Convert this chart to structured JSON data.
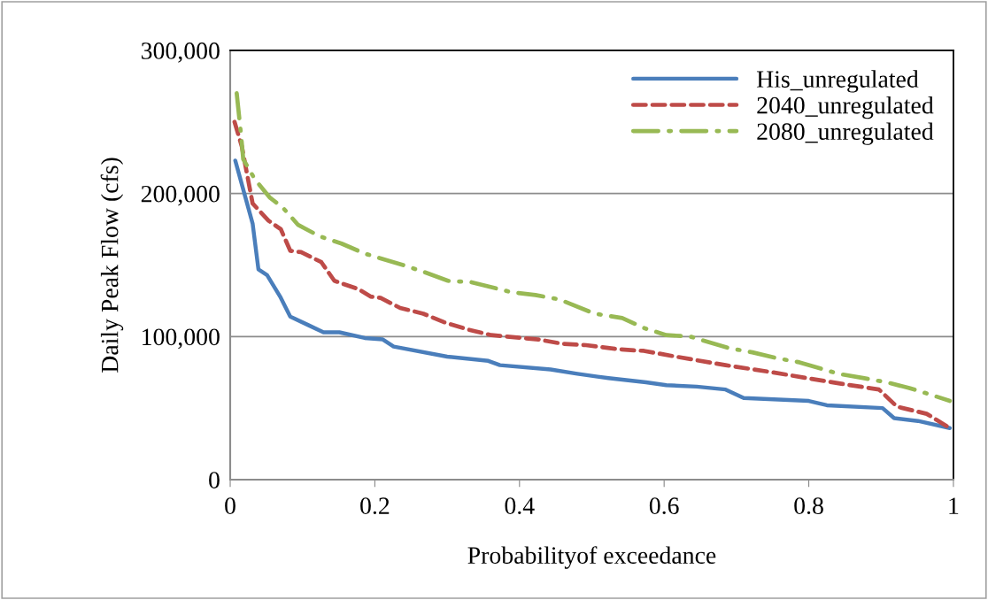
{
  "chart_data": {
    "type": "line",
    "xlabel": "Probabilityof exceedance",
    "ylabel": "Daily Peak Flow (cfs)",
    "xlim": [
      0,
      1
    ],
    "xticks": [
      0,
      0.2,
      0.4,
      0.6,
      0.8,
      1
    ],
    "ylim": [
      0,
      300000
    ],
    "yticks": [
      0,
      {
        "value": 100000,
        "label": "100,000"
      },
      {
        "value": 200000,
        "label": "200,000"
      },
      {
        "value": 300000,
        "label": "300,000"
      }
    ],
    "grid": "y",
    "legend": "top right",
    "series": [
      {
        "name": "His_unregulated",
        "color": "#4a7ebb",
        "line_style": "solid",
        "x": [
          0.007,
          0.031,
          0.039,
          0.051,
          0.069,
          0.083,
          0.108,
          0.129,
          0.151,
          0.186,
          0.211,
          0.226,
          0.3,
          0.357,
          0.373,
          0.443,
          0.48,
          0.508,
          0.523,
          0.575,
          0.603,
          0.645,
          0.685,
          0.71,
          0.8,
          0.825,
          0.902,
          0.918,
          0.951,
          0.995
        ],
        "values": [
          223000,
          179000,
          147000,
          143000,
          128000,
          114000,
          108000,
          103000,
          103000,
          99000,
          98000,
          93000,
          86000,
          83000,
          80000,
          77000,
          74000,
          72000,
          71000,
          68000,
          66000,
          65000,
          63000,
          57000,
          55000,
          52000,
          50000,
          43000,
          41000,
          36000
        ]
      },
      {
        "name": "2040_unregulated",
        "color": "#be4b48",
        "line_style": "dashed",
        "x": [
          0.006,
          0.016,
          0.031,
          0.053,
          0.07,
          0.083,
          0.098,
          0.126,
          0.144,
          0.178,
          0.194,
          0.208,
          0.235,
          0.267,
          0.296,
          0.328,
          0.361,
          0.426,
          0.459,
          0.492,
          0.539,
          0.572,
          0.616,
          0.685,
          0.75,
          0.845,
          0.897,
          0.922,
          0.963,
          0.995
        ],
        "values": [
          250000,
          233000,
          193000,
          181000,
          175000,
          160000,
          159000,
          152000,
          139000,
          133000,
          128000,
          127000,
          120000,
          116000,
          110000,
          105000,
          101000,
          98000,
          95000,
          94000,
          91000,
          90000,
          86000,
          80000,
          75000,
          67000,
          63000,
          51000,
          46000,
          36000
        ]
      },
      {
        "name": "2080_unregulated",
        "color": "#98b954",
        "line_style": "dashdot",
        "x": [
          0.009,
          0.015,
          0.018,
          0.034,
          0.055,
          0.073,
          0.094,
          0.124,
          0.154,
          0.186,
          0.239,
          0.269,
          0.301,
          0.333,
          0.389,
          0.422,
          0.455,
          0.504,
          0.542,
          0.572,
          0.603,
          0.636,
          0.689,
          0.722,
          0.755,
          0.787,
          0.841,
          0.875,
          0.908,
          0.939,
          0.971,
          0.995
        ],
        "values": [
          270000,
          241000,
          224000,
          210000,
          197000,
          190000,
          178000,
          170000,
          165000,
          158000,
          150000,
          145000,
          139000,
          138000,
          131000,
          129000,
          126000,
          116000,
          113000,
          106000,
          101000,
          100000,
          92000,
          89000,
          85000,
          82000,
          74000,
          71000,
          68000,
          64000,
          59000,
          55000
        ]
      }
    ]
  }
}
